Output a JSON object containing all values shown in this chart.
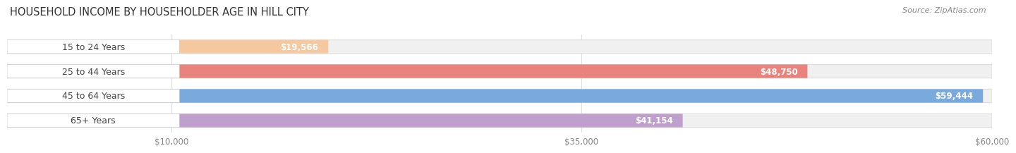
{
  "title": "HOUSEHOLD INCOME BY HOUSEHOLDER AGE IN HILL CITY",
  "source": "Source: ZipAtlas.com",
  "categories": [
    "15 to 24 Years",
    "25 to 44 Years",
    "45 to 64 Years",
    "65+ Years"
  ],
  "values": [
    19566,
    48750,
    59444,
    41154
  ],
  "value_labels": [
    "$19,566",
    "$48,750",
    "$59,444",
    "$41,154"
  ],
  "bar_colors": [
    "#f5c8a0",
    "#e8837d",
    "#7aaadd",
    "#bf9fcc"
  ],
  "background_color": "#ffffff",
  "pill_bg_color": "#f0f0f0",
  "pill_border_color": "#dddddd",
  "x_max": 60000,
  "x_ticks": [
    10000,
    35000,
    60000
  ],
  "x_tick_labels": [
    "$10,000",
    "$35,000",
    "$60,000"
  ],
  "title_fontsize": 10.5,
  "source_fontsize": 8,
  "label_fontsize": 9,
  "value_fontsize": 8.5,
  "tick_fontsize": 8.5,
  "label_color": "#444444",
  "value_color": "#ffffff",
  "tick_color": "#888888",
  "grid_color": "#dddddd"
}
